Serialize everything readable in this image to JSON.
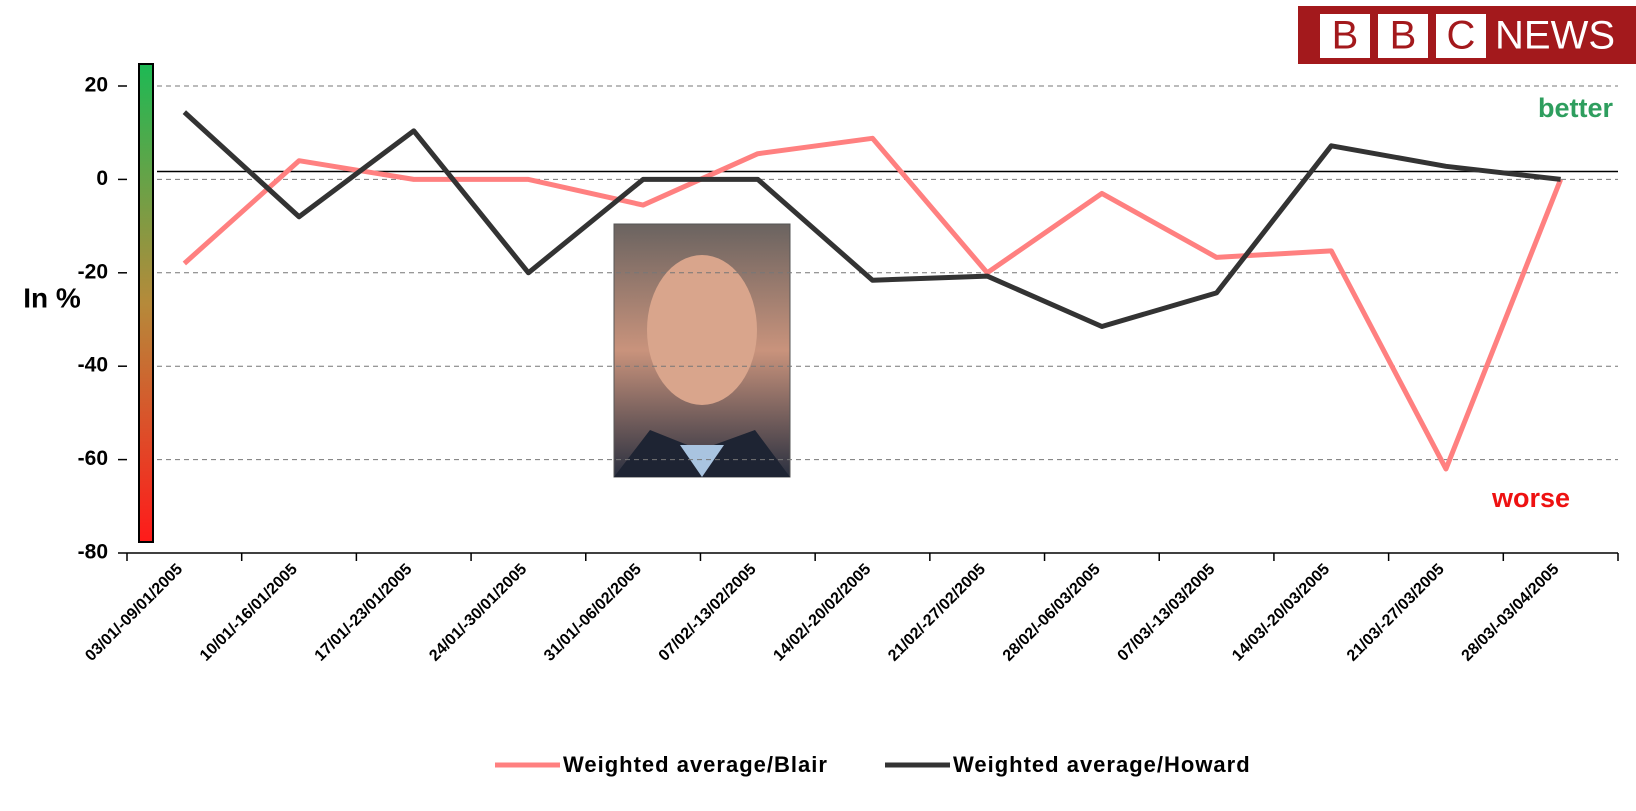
{
  "chart_data": {
    "type": "line",
    "y_label": "In %",
    "categories": [
      "03/01/-09/01/2005",
      "10/01/-16/01/2005",
      "17/01/-23/01/2005",
      "24/01/-30/01/2005",
      "31/01/-06/02/2005",
      "07/02/-13/02/2005",
      "14/02/-20/02/2005",
      "21/02/-27/02/2005",
      "28/02/-06/03/2005",
      "07/03/-13/03/2005",
      "14/03/-20/03/2005",
      "21/03/-27/03/2005",
      "28/03/-03/04/2005"
    ],
    "series": [
      {
        "name": "Weighted average/Blair",
        "color": "#ff8080",
        "values": [
          -18,
          4,
          0,
          0,
          -5.5,
          5.5,
          8.8,
          -20,
          -3,
          -16.7,
          -15.3,
          -62,
          0
        ]
      },
      {
        "name": "Weighted average/Howard",
        "color": "#333333",
        "values": [
          14.4,
          -8,
          10.4,
          -20,
          0,
          0,
          -21.6,
          -20.7,
          -31.5,
          -24.3,
          7.2,
          2.8,
          0
        ]
      }
    ],
    "reference_line": 1.7,
    "ylim": [
      -80,
      20
    ],
    "yticks": [
      -80,
      -60,
      -40,
      -20,
      0,
      20
    ],
    "grid": true,
    "annotations": {
      "better": "better",
      "worse": "worse"
    },
    "logo": [
      "B",
      "B",
      "C",
      "NEWS"
    ]
  }
}
